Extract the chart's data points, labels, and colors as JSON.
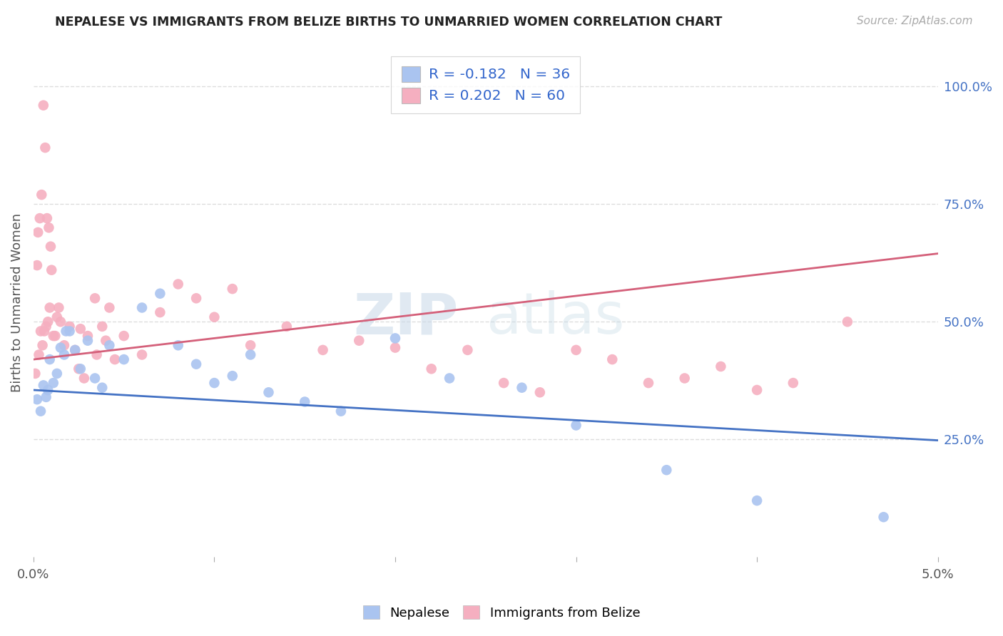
{
  "title": "NEPALESE VS IMMIGRANTS FROM BELIZE BIRTHS TO UNMARRIED WOMEN CORRELATION CHART",
  "source": "Source: ZipAtlas.com",
  "ylabel": "Births to Unmarried Women",
  "xlim": [
    0.0,
    0.05
  ],
  "ylim": [
    0.0,
    1.08
  ],
  "ytick_vals_right": [
    0.25,
    0.5,
    0.75,
    1.0
  ],
  "ytick_labels_right": [
    "25.0%",
    "50.0%",
    "75.0%",
    "100.0%"
  ],
  "legend_r1": "-0.182",
  "legend_n1": "36",
  "legend_r2": "0.202",
  "legend_n2": "60",
  "blue_color": "#aac4f0",
  "pink_color": "#f5afc0",
  "blue_line_color": "#4472c4",
  "pink_line_color": "#d4607a",
  "watermark_zip": "ZIP",
  "watermark_atlas": "atlas",
  "background_color": "#ffffff",
  "grid_color": "#dddddd",
  "nepalese_x": [
    0.0002,
    0.0004,
    0.00055,
    0.0007,
    0.0009,
    0.0011,
    0.0013,
    0.0015,
    0.0017,
    0.002,
    0.0023,
    0.0026,
    0.003,
    0.0034,
    0.0038,
    0.0042,
    0.005,
    0.006,
    0.007,
    0.008,
    0.009,
    0.01,
    0.011,
    0.012,
    0.013,
    0.015,
    0.017,
    0.02,
    0.023,
    0.027,
    0.03,
    0.035,
    0.04,
    0.047,
    0.0008,
    0.0018
  ],
  "nepalese_y": [
    0.335,
    0.31,
    0.365,
    0.34,
    0.42,
    0.37,
    0.39,
    0.445,
    0.43,
    0.48,
    0.44,
    0.4,
    0.46,
    0.38,
    0.36,
    0.45,
    0.42,
    0.53,
    0.56,
    0.45,
    0.41,
    0.37,
    0.385,
    0.43,
    0.35,
    0.33,
    0.31,
    0.465,
    0.38,
    0.36,
    0.28,
    0.185,
    0.12,
    0.085,
    0.355,
    0.48
  ],
  "belize_x": [
    0.0001,
    0.0003,
    0.0005,
    0.0007,
    0.0009,
    0.0011,
    0.0013,
    0.0015,
    0.0017,
    0.002,
    0.0023,
    0.0026,
    0.003,
    0.0034,
    0.0038,
    0.0042,
    0.005,
    0.006,
    0.007,
    0.008,
    0.009,
    0.01,
    0.011,
    0.012,
    0.014,
    0.016,
    0.018,
    0.02,
    0.022,
    0.024,
    0.026,
    0.028,
    0.03,
    0.032,
    0.034,
    0.036,
    0.038,
    0.04,
    0.042,
    0.045,
    0.0006,
    0.0008,
    0.0004,
    0.0012,
    0.0014,
    0.0025,
    0.0028,
    0.0035,
    0.004,
    0.0045,
    0.0002,
    0.00025,
    0.00035,
    0.00045,
    0.00055,
    0.00065,
    0.00075,
    0.00085,
    0.00095,
    0.001
  ],
  "belize_y": [
    0.39,
    0.43,
    0.45,
    0.49,
    0.53,
    0.47,
    0.51,
    0.5,
    0.45,
    0.49,
    0.44,
    0.485,
    0.47,
    0.55,
    0.49,
    0.53,
    0.47,
    0.43,
    0.52,
    0.58,
    0.55,
    0.51,
    0.57,
    0.45,
    0.49,
    0.44,
    0.46,
    0.445,
    0.4,
    0.44,
    0.37,
    0.35,
    0.44,
    0.42,
    0.37,
    0.38,
    0.405,
    0.355,
    0.37,
    0.5,
    0.48,
    0.5,
    0.48,
    0.47,
    0.53,
    0.4,
    0.38,
    0.43,
    0.46,
    0.42,
    0.62,
    0.69,
    0.72,
    0.77,
    0.96,
    0.87,
    0.72,
    0.7,
    0.66,
    0.61
  ],
  "blue_trend_x": [
    0.0,
    0.05
  ],
  "blue_trend_y": [
    0.355,
    0.248
  ],
  "pink_trend_x": [
    0.0,
    0.05
  ],
  "pink_trend_y": [
    0.42,
    0.645
  ]
}
